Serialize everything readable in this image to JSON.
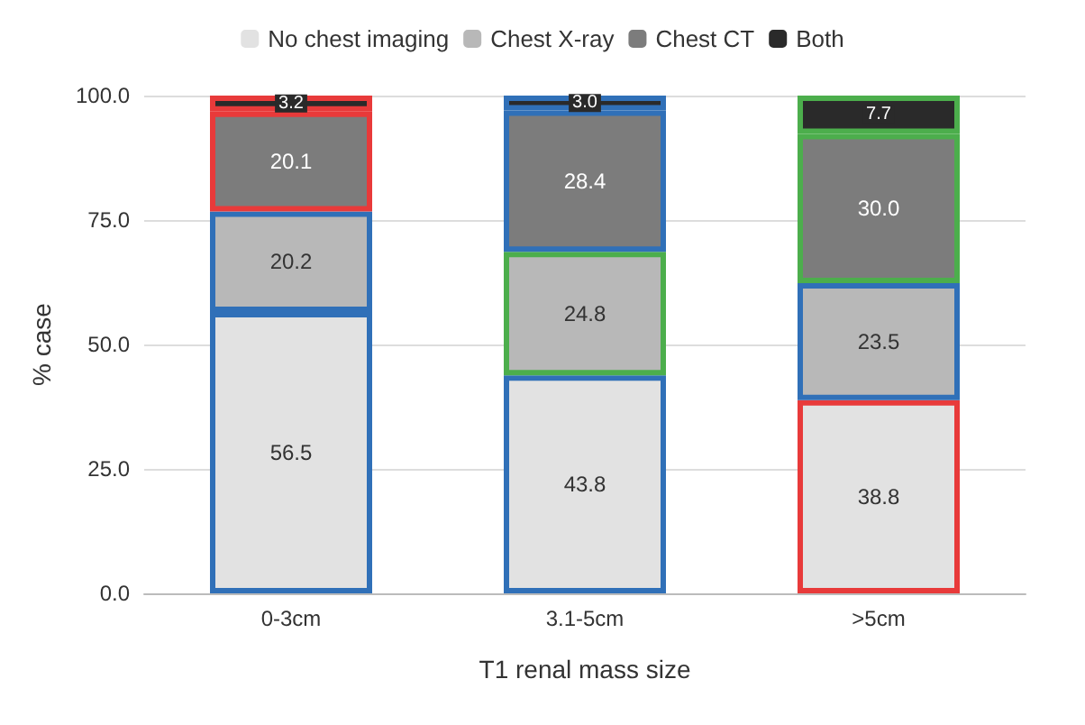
{
  "chart_data": {
    "type": "bar",
    "stacked": true,
    "xlabel": "T1 renal mass size",
    "ylabel": "% case",
    "categories": [
      "0-3cm",
      "3.1-5cm",
      ">5cm"
    ],
    "series": [
      {
        "name": "No chest imaging",
        "color": "#e2e2e2",
        "colors": [
          "#3070b8",
          "#3070b8",
          "#e83a3a"
        ],
        "values": [
          56.5,
          43.8,
          38.8
        ],
        "value_labels": [
          "56.5",
          "43.8",
          "38.8"
        ]
      },
      {
        "name": "Chest X-ray",
        "color": "#b8b8b8",
        "colors": [
          "#3070b8",
          "#4cae4c",
          "#3070b8"
        ],
        "values": [
          20.2,
          24.8,
          23.5
        ],
        "value_labels": [
          "20.2",
          "24.8",
          "23.5"
        ]
      },
      {
        "name": "Chest CT",
        "color": "#7c7c7c",
        "colors": [
          "#e83a3a",
          "#3070b8",
          "#4cae4c"
        ],
        "values": [
          20.1,
          28.4,
          30.0
        ],
        "value_labels": [
          "20.1",
          "28.4",
          "30.0"
        ]
      },
      {
        "name": "Both",
        "color": "#2a2a2a",
        "colors": [
          "#e83a3a",
          "#3070b8",
          "#4cae4c"
        ],
        "values": [
          3.2,
          3.0,
          7.7
        ],
        "value_labels": [
          "3.2",
          "3.0",
          "7.7"
        ]
      }
    ],
    "ylim": [
      0,
      100
    ],
    "yticks": [
      {
        "value": 0,
        "label": "0.0"
      },
      {
        "value": 25,
        "label": "25.0"
      },
      {
        "value": 50,
        "label": "50.0"
      },
      {
        "value": 75,
        "label": "75.0"
      },
      {
        "value": 100,
        "label": "100.0"
      }
    ],
    "grid": "y",
    "legend": "top"
  }
}
